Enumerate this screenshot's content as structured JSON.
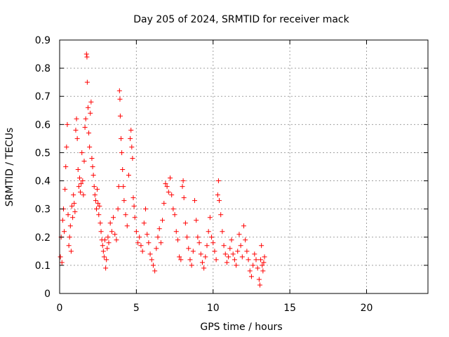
{
  "chart_data": {
    "type": "scatter",
    "title": "Day 205 of 2024, SRMTID for receiver mack",
    "xlabel": "GPS time / hours",
    "ylabel": "SRMTID / TECUs",
    "xlim": [
      0,
      24
    ],
    "ylim": [
      0,
      0.9
    ],
    "x_ticks": [
      0,
      5,
      10,
      15,
      20
    ],
    "x_tick_labels": [
      "0",
      "5",
      "10",
      "15",
      "20"
    ],
    "y_ticks": [
      0,
      0.1,
      0.2,
      0.3,
      0.4,
      0.5,
      0.6,
      0.7,
      0.8,
      0.9
    ],
    "y_tick_labels": [
      "0",
      "0.1",
      "0.2",
      "0.3",
      "0.4",
      "0.5",
      "0.6",
      "0.7",
      "0.8",
      "0.9"
    ],
    "grid": true,
    "marker": "+",
    "series": [
      {
        "name": "SRMTID",
        "color": "#ff0000",
        "points": [
          [
            0.05,
            0.13
          ],
          [
            0.1,
            0.2
          ],
          [
            0.15,
            0.11
          ],
          [
            0.2,
            0.26
          ],
          [
            0.25,
            0.3
          ],
          [
            0.3,
            0.22
          ],
          [
            0.35,
            0.37
          ],
          [
            0.4,
            0.45
          ],
          [
            0.45,
            0.52
          ],
          [
            0.5,
            0.6
          ],
          [
            0.55,
            0.28
          ],
          [
            0.6,
            0.17
          ],
          [
            0.65,
            0.2
          ],
          [
            0.7,
            0.24
          ],
          [
            0.75,
            0.15
          ],
          [
            0.8,
            0.31
          ],
          [
            0.85,
            0.27
          ],
          [
            0.9,
            0.35
          ],
          [
            0.95,
            0.32
          ],
          [
            1.0,
            0.29
          ],
          [
            1.05,
            0.58
          ],
          [
            1.1,
            0.62
          ],
          [
            1.15,
            0.55
          ],
          [
            1.2,
            0.44
          ],
          [
            1.25,
            0.38
          ],
          [
            1.3,
            0.41
          ],
          [
            1.35,
            0.36
          ],
          [
            1.4,
            0.39
          ],
          [
            1.45,
            0.5
          ],
          [
            1.5,
            0.4
          ],
          [
            1.55,
            0.35
          ],
          [
            1.6,
            0.47
          ],
          [
            1.65,
            0.59
          ],
          [
            1.7,
            0.62
          ],
          [
            1.75,
            0.85
          ],
          [
            1.78,
            0.84
          ],
          [
            1.8,
            0.75
          ],
          [
            1.85,
            0.66
          ],
          [
            1.9,
            0.57
          ],
          [
            1.95,
            0.52
          ],
          [
            2.0,
            0.64
          ],
          [
            2.05,
            0.68
          ],
          [
            2.1,
            0.48
          ],
          [
            2.15,
            0.45
          ],
          [
            2.2,
            0.42
          ],
          [
            2.25,
            0.38
          ],
          [
            2.3,
            0.35
          ],
          [
            2.35,
            0.33
          ],
          [
            2.4,
            0.3
          ],
          [
            2.45,
            0.37
          ],
          [
            2.5,
            0.32
          ],
          [
            2.55,
            0.28
          ],
          [
            2.6,
            0.31
          ],
          [
            2.65,
            0.25
          ],
          [
            2.7,
            0.22
          ],
          [
            2.75,
            0.19
          ],
          [
            2.8,
            0.17
          ],
          [
            2.85,
            0.15
          ],
          [
            2.9,
            0.13
          ],
          [
            2.95,
            0.19
          ],
          [
            3.0,
            0.09
          ],
          [
            3.05,
            0.12
          ],
          [
            3.1,
            0.16
          ],
          [
            3.15,
            0.2
          ],
          [
            3.2,
            0.18
          ],
          [
            3.3,
            0.25
          ],
          [
            3.4,
            0.22
          ],
          [
            3.5,
            0.27
          ],
          [
            3.6,
            0.21
          ],
          [
            3.7,
            0.19
          ],
          [
            3.8,
            0.3
          ],
          [
            3.85,
            0.38
          ],
          [
            3.9,
            0.72
          ],
          [
            3.93,
            0.69
          ],
          [
            3.95,
            0.63
          ],
          [
            4.0,
            0.55
          ],
          [
            4.05,
            0.5
          ],
          [
            4.1,
            0.44
          ],
          [
            4.15,
            0.38
          ],
          [
            4.2,
            0.33
          ],
          [
            4.3,
            0.28
          ],
          [
            4.4,
            0.24
          ],
          [
            4.5,
            0.42
          ],
          [
            4.6,
            0.55
          ],
          [
            4.65,
            0.58
          ],
          [
            4.7,
            0.52
          ],
          [
            4.75,
            0.48
          ],
          [
            4.8,
            0.34
          ],
          [
            4.85,
            0.31
          ],
          [
            4.9,
            0.27
          ],
          [
            5.0,
            0.22
          ],
          [
            5.1,
            0.18
          ],
          [
            5.2,
            0.2
          ],
          [
            5.3,
            0.17
          ],
          [
            5.4,
            0.15
          ],
          [
            5.5,
            0.25
          ],
          [
            5.6,
            0.3
          ],
          [
            5.7,
            0.21
          ],
          [
            5.8,
            0.18
          ],
          [
            5.9,
            0.14
          ],
          [
            6.0,
            0.12
          ],
          [
            6.1,
            0.1
          ],
          [
            6.2,
            0.08
          ],
          [
            6.3,
            0.16
          ],
          [
            6.4,
            0.2
          ],
          [
            6.5,
            0.23
          ],
          [
            6.6,
            0.18
          ],
          [
            6.7,
            0.26
          ],
          [
            6.8,
            0.32
          ],
          [
            6.9,
            0.39
          ],
          [
            7.0,
            0.38
          ],
          [
            7.1,
            0.36
          ],
          [
            7.2,
            0.41
          ],
          [
            7.3,
            0.35
          ],
          [
            7.4,
            0.3
          ],
          [
            7.5,
            0.28
          ],
          [
            7.6,
            0.22
          ],
          [
            7.7,
            0.19
          ],
          [
            7.8,
            0.13
          ],
          [
            7.9,
            0.12
          ],
          [
            8.0,
            0.38
          ],
          [
            8.05,
            0.4
          ],
          [
            8.1,
            0.34
          ],
          [
            8.2,
            0.25
          ],
          [
            8.3,
            0.2
          ],
          [
            8.4,
            0.16
          ],
          [
            8.5,
            0.12
          ],
          [
            8.6,
            0.1
          ],
          [
            8.7,
            0.15
          ],
          [
            8.8,
            0.33
          ],
          [
            8.9,
            0.26
          ],
          [
            9.0,
            0.2
          ],
          [
            9.1,
            0.18
          ],
          [
            9.2,
            0.14
          ],
          [
            9.3,
            0.11
          ],
          [
            9.4,
            0.09
          ],
          [
            9.5,
            0.13
          ],
          [
            9.6,
            0.17
          ],
          [
            9.7,
            0.22
          ],
          [
            9.8,
            0.27
          ],
          [
            9.9,
            0.2
          ],
          [
            10.0,
            0.18
          ],
          [
            10.1,
            0.15
          ],
          [
            10.2,
            0.12
          ],
          [
            10.3,
            0.35
          ],
          [
            10.35,
            0.4
          ],
          [
            10.4,
            0.33
          ],
          [
            10.5,
            0.28
          ],
          [
            10.6,
            0.22
          ],
          [
            10.7,
            0.17
          ],
          [
            10.8,
            0.14
          ],
          [
            10.9,
            0.11
          ],
          [
            11.0,
            0.13
          ],
          [
            11.1,
            0.16
          ],
          [
            11.2,
            0.19
          ],
          [
            11.3,
            0.14
          ],
          [
            11.4,
            0.12
          ],
          [
            11.5,
            0.1
          ],
          [
            11.6,
            0.15
          ],
          [
            11.7,
            0.21
          ],
          [
            11.8,
            0.17
          ],
          [
            11.9,
            0.13
          ],
          [
            12.0,
            0.24
          ],
          [
            12.1,
            0.19
          ],
          [
            12.2,
            0.15
          ],
          [
            12.3,
            0.12
          ],
          [
            12.4,
            0.08
          ],
          [
            12.5,
            0.06
          ],
          [
            12.6,
            0.1
          ],
          [
            12.7,
            0.14
          ],
          [
            12.8,
            0.12
          ],
          [
            12.9,
            0.09
          ],
          [
            13.0,
            0.05
          ],
          [
            13.05,
            0.03
          ],
          [
            13.1,
            0.12
          ],
          [
            13.15,
            0.17
          ],
          [
            13.2,
            0.1
          ],
          [
            13.25,
            0.08
          ],
          [
            13.3,
            0.11
          ],
          [
            13.35,
            0.13
          ]
        ]
      }
    ]
  }
}
